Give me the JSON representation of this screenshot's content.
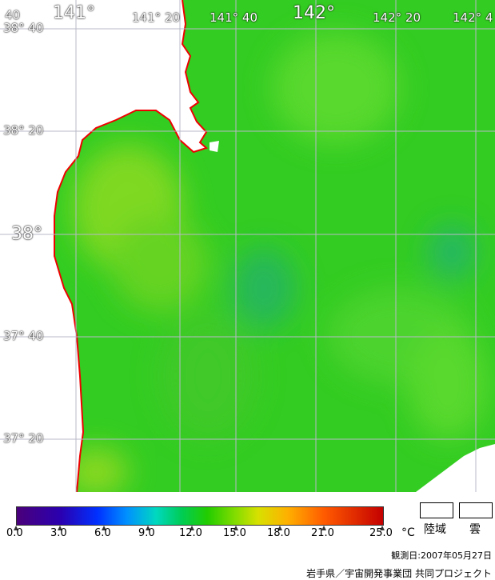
{
  "map": {
    "lon_labels_major": [
      "141°",
      "142°"
    ],
    "lon_labels_minor": [
      "40",
      "141°  20",
      "141°  40",
      "142°  20",
      "142°  4"
    ],
    "lat_labels_major": [
      "38°"
    ],
    "lat_labels_minor": [
      "38°  40",
      "38°  20",
      "37°  40",
      "37°  20"
    ]
  },
  "colorbar": {
    "ticks": [
      "0.0",
      "3.0",
      "6.0",
      "9.0",
      "12.0",
      "15.0",
      "18.0",
      "21.0",
      "25.0"
    ],
    "unit": "°C"
  },
  "legend": {
    "land_label": "陸域",
    "cloud_label": "雲"
  },
  "observation_date": "観測日:2007年05月27日",
  "credit": "岩手県／宇宙開発事業団 共同プロジェクト",
  "colors": {
    "sea": "#33cc22",
    "coastline": "#ee0000",
    "grid": "#b8b8c8",
    "land_cloud": "#ffffff"
  }
}
